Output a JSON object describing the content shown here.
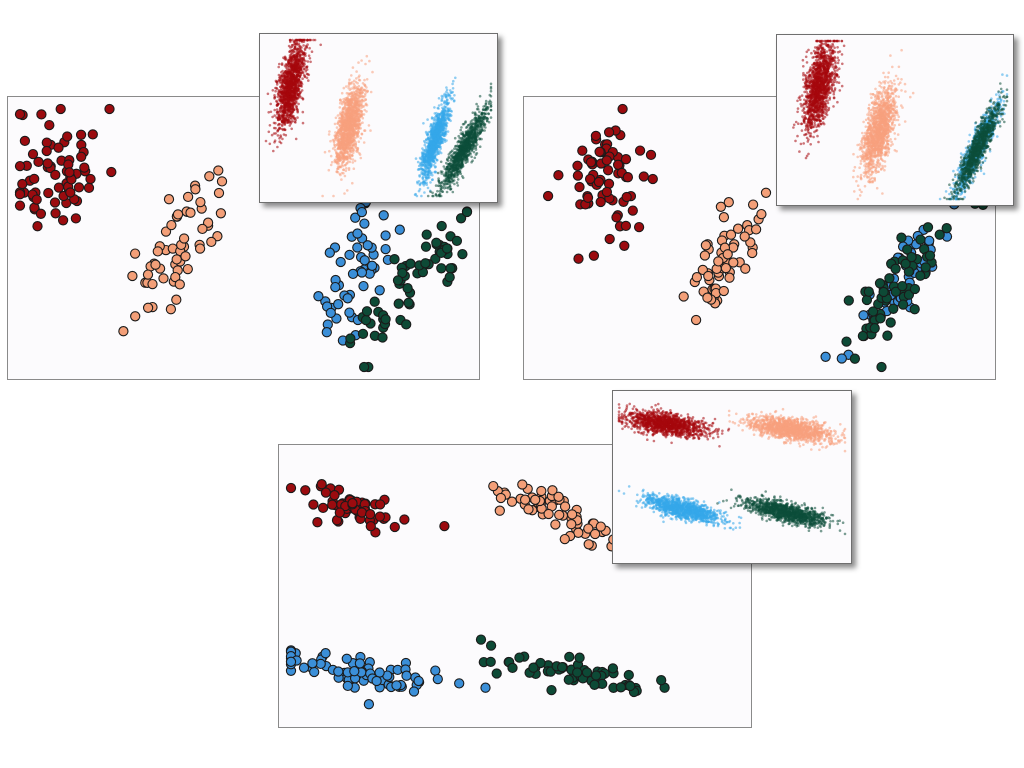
{
  "colors": {
    "c1": "#9b0b0f",
    "c2": "#f39f78",
    "c3": "#3b8fd8",
    "c4": "#0d4a36",
    "c1_bright": "#a5080c",
    "c2_bright": "#f7a07e",
    "c3_bright": "#35a7ea",
    "c4_bright": "#0d4e3a",
    "panel_bg": "#fcfbfd",
    "marker_edge": "#1a1a1a"
  },
  "chart_data": [
    {
      "type": "scatter",
      "xlim": [
        0,
        100
      ],
      "ylim": [
        0,
        100
      ],
      "series": [
        {
          "color": "c1",
          "cx": 8,
          "cy": 77,
          "sx": 5.2,
          "sy": 13,
          "rot": 0,
          "n": 70,
          "seed": 11
        },
        {
          "color": "c2",
          "cx": 35,
          "cy": 45,
          "sx": 3.2,
          "sy": 13,
          "rot": 15,
          "n": 60,
          "seed": 23
        },
        {
          "color": "c3",
          "cx": 75,
          "cy": 37,
          "sx": 3.0,
          "sy": 14,
          "rot": 12,
          "n": 55,
          "seed": 37
        },
        {
          "color": "c4",
          "cx": 89,
          "cy": 33,
          "sx": 3.6,
          "sy": 15,
          "rot": 25,
          "n": 65,
          "seed": 41
        }
      ]
    },
    {
      "type": "scatter",
      "xlim": [
        0,
        100
      ],
      "ylim": [
        0,
        100
      ],
      "series": [
        {
          "color": "c1",
          "cx": 16,
          "cy": 73,
          "sx": 5.0,
          "sy": 13,
          "rot": 0,
          "n": 70,
          "seed": 53
        },
        {
          "color": "c2",
          "cx": 42,
          "cy": 43,
          "sx": 3.2,
          "sy": 14,
          "rot": 15,
          "n": 60,
          "seed": 61
        },
        {
          "color": "c3",
          "cx": 81,
          "cy": 31,
          "sx": 2.8,
          "sy": 15,
          "rot": 20,
          "n": 55,
          "seed": 71
        },
        {
          "color": "c4",
          "cx": 81,
          "cy": 30,
          "sx": 3.2,
          "sy": 15,
          "rot": 20,
          "n": 65,
          "seed": 83
        }
      ]
    },
    {
      "type": "scatter",
      "xlim": [
        0,
        100
      ],
      "ylim": [
        0,
        100
      ],
      "series": [
        {
          "color": "c1",
          "cx": 11,
          "cy": 82,
          "sx": 8.0,
          "sy": 3.0,
          "rot": 30,
          "n": 60,
          "seed": 97
        },
        {
          "color": "c2",
          "cx": 59,
          "cy": 79,
          "sx": 9.0,
          "sy": 3.2,
          "rot": 35,
          "n": 65,
          "seed": 101
        },
        {
          "color": "c3",
          "cx": 15,
          "cy": 16,
          "sx": 10.0,
          "sy": 3.0,
          "rot": 18,
          "n": 70,
          "seed": 113
        },
        {
          "color": "c4",
          "cx": 63,
          "cy": 16,
          "sx": 10.0,
          "sy": 2.8,
          "rot": 18,
          "n": 60,
          "seed": 127
        }
      ]
    }
  ],
  "inset_data": [
    {
      "type": "scatter",
      "xlim": [
        0,
        100
      ],
      "ylim": [
        0,
        100
      ],
      "series": [
        {
          "color": "c1_bright",
          "cx": 11,
          "cy": 71,
          "sx": 2.6,
          "sy": 14,
          "rot": 8,
          "n": 1400,
          "seed": 131
        },
        {
          "color": "c2_bright",
          "cx": 37,
          "cy": 45,
          "sx": 2.6,
          "sy": 13,
          "rot": 8,
          "n": 1400,
          "seed": 137
        },
        {
          "color": "c3_bright",
          "cx": 75,
          "cy": 35,
          "sx": 1.8,
          "sy": 13,
          "rot": 12,
          "n": 1100,
          "seed": 139
        },
        {
          "color": "c4_bright",
          "cx": 88,
          "cy": 30,
          "sx": 2.1,
          "sy": 14,
          "rot": 20,
          "n": 1100,
          "seed": 149
        }
      ]
    },
    {
      "type": "scatter",
      "xlim": [
        0,
        100
      ],
      "ylim": [
        0,
        100
      ],
      "series": [
        {
          "color": "c1_bright",
          "cx": 16,
          "cy": 71,
          "sx": 3.0,
          "sy": 14,
          "rot": 8,
          "n": 1400,
          "seed": 151
        },
        {
          "color": "c2_bright",
          "cx": 43,
          "cy": 44,
          "sx": 3.0,
          "sy": 14,
          "rot": 10,
          "n": 1400,
          "seed": 157
        },
        {
          "color": "c3_bright",
          "cx": 87,
          "cy": 33,
          "sx": 2.0,
          "sy": 14,
          "rot": 18,
          "n": 1000,
          "seed": 163
        },
        {
          "color": "c4_bright",
          "cx": 87,
          "cy": 32,
          "sx": 2.0,
          "sy": 14,
          "rot": 18,
          "n": 1000,
          "seed": 167
        }
      ]
    },
    {
      "type": "scatter",
      "xlim": [
        0,
        100
      ],
      "ylim": [
        0,
        100
      ],
      "series": [
        {
          "color": "c1_bright",
          "cx": 21,
          "cy": 83,
          "sx": 9.0,
          "sy": 3.2,
          "rot": 14,
          "n": 1300,
          "seed": 173
        },
        {
          "color": "c2_bright",
          "cx": 76,
          "cy": 80,
          "sx": 9.5,
          "sy": 3.3,
          "rot": 14,
          "n": 1300,
          "seed": 179
        },
        {
          "color": "c3_bright",
          "cx": 28,
          "cy": 30,
          "sx": 8.5,
          "sy": 2.8,
          "rot": 20,
          "n": 1200,
          "seed": 181
        },
        {
          "color": "c4_bright",
          "cx": 74,
          "cy": 28,
          "sx": 9.0,
          "sy": 2.8,
          "rot": 20,
          "n": 1200,
          "seed": 191
        }
      ]
    }
  ]
}
